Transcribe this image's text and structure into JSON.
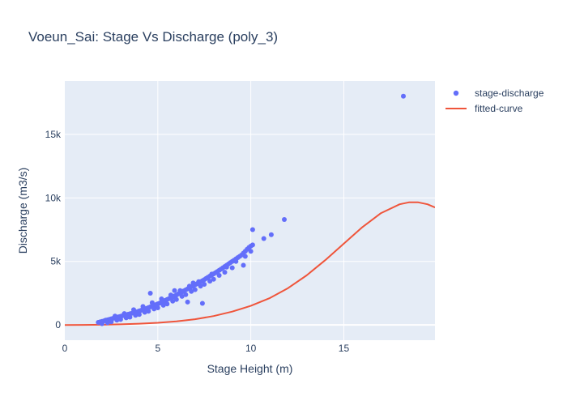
{
  "chart_data": {
    "type": "scatter",
    "title": "Voeun_Sai: Stage Vs Discharge (poly_3)",
    "xlabel": "Stage Height (m)",
    "ylabel": "Discharge (m3/s)",
    "xlim": [
      0,
      19.9
    ],
    "ylim": [
      -1200,
      19200
    ],
    "x_ticks": [
      {
        "value": 0,
        "label": "0"
      },
      {
        "value": 5,
        "label": "5"
      },
      {
        "value": 10,
        "label": "10"
      },
      {
        "value": 15,
        "label": "15"
      }
    ],
    "y_ticks": [
      {
        "value": 0,
        "label": "0"
      },
      {
        "value": 5000,
        "label": "5k"
      },
      {
        "value": 10000,
        "label": "10k"
      },
      {
        "value": 15000,
        "label": "15k"
      }
    ],
    "grid": true,
    "legend_position": "top-right",
    "colors": {
      "plot_background": "#e5ecf6",
      "grid": "#ffffff",
      "scatter": "#636efa",
      "line": "#ef553b",
      "text": "#2a3f5f"
    },
    "series": [
      {
        "name": "stage-discharge",
        "type": "scatter",
        "x": [
          1.8,
          1.9,
          2.0,
          2.1,
          2.2,
          2.3,
          2.4,
          2.5,
          2.6,
          2.7,
          2.8,
          2.9,
          3.0,
          3.1,
          3.2,
          3.3,
          3.4,
          3.5,
          3.6,
          3.7,
          3.8,
          3.9,
          4.0,
          4.1,
          4.2,
          4.3,
          4.4,
          4.5,
          4.6,
          4.7,
          4.8,
          4.9,
          5.0,
          5.1,
          5.2,
          5.3,
          5.4,
          5.5,
          5.6,
          5.7,
          5.8,
          5.9,
          6.0,
          6.1,
          6.2,
          6.3,
          6.4,
          6.5,
          6.6,
          6.7,
          6.8,
          6.9,
          7.0,
          7.1,
          7.2,
          7.3,
          7.4,
          7.5,
          7.6,
          7.7,
          7.8,
          7.9,
          8.0,
          8.1,
          8.2,
          8.3,
          8.4,
          8.5,
          8.6,
          8.7,
          8.8,
          8.9,
          9.0,
          9.1,
          9.2,
          9.3,
          9.4,
          9.5,
          9.6,
          9.7,
          9.8,
          9.9,
          10.0,
          10.1,
          2.0,
          2.3,
          2.5,
          2.8,
          3.0,
          3.3,
          3.5,
          3.8,
          4.0,
          4.3,
          4.5,
          4.8,
          5.0,
          5.3,
          5.5,
          5.8,
          6.0,
          6.3,
          6.5,
          6.8,
          7.0,
          7.3,
          7.5,
          7.8,
          8.0,
          8.3,
          8.6,
          9.0,
          2.2,
          2.7,
          3.2,
          3.7,
          4.2,
          4.7,
          5.2,
          5.7,
          6.2,
          6.7,
          7.2,
          7.7,
          8.2,
          8.7,
          9.2,
          9.7,
          10.0,
          10.1,
          10.7,
          11.1,
          11.8,
          18.2,
          4.6,
          5.9,
          6.9,
          7.9,
          6.6,
          7.4,
          9.6
        ],
        "y": [
          200,
          240,
          280,
          320,
          360,
          400,
          440,
          480,
          520,
          560,
          600,
          640,
          680,
          720,
          760,
          800,
          840,
          880,
          920,
          960,
          1000,
          1050,
          1100,
          1150,
          1200,
          1250,
          1300,
          1360,
          1420,
          1480,
          1540,
          1600,
          1660,
          1720,
          1790,
          1860,
          1930,
          2000,
          2070,
          2140,
          2210,
          2280,
          2360,
          2440,
          2520,
          2600,
          2680,
          2760,
          2840,
          2920,
          3000,
          3080,
          3160,
          3240,
          3320,
          3400,
          3480,
          3570,
          3660,
          3750,
          3840,
          3930,
          4020,
          4110,
          4200,
          4300,
          4400,
          4500,
          4600,
          4700,
          4800,
          4900,
          5000,
          5100,
          5200,
          5300,
          5400,
          5500,
          5650,
          5800,
          5950,
          6100,
          6200,
          6300,
          100,
          180,
          250,
          380,
          430,
          560,
          620,
          760,
          830,
          1000,
          1080,
          1260,
          1350,
          1550,
          1650,
          1880,
          2000,
          2250,
          2380,
          2640,
          2780,
          3050,
          3200,
          3450,
          3600,
          3900,
          4150,
          4500,
          380,
          700,
          900,
          1200,
          1450,
          1750,
          2050,
          2350,
          2700,
          3050,
          3400,
          3750,
          4150,
          4550,
          5000,
          5400,
          5800,
          7500,
          6800,
          7100,
          8300,
          18000,
          2500,
          2700,
          3300,
          4000,
          1800,
          1700,
          4700
        ]
      },
      {
        "name": "fitted-curve",
        "type": "line",
        "x": [
          0,
          1,
          2,
          3,
          4,
          5,
          6,
          7,
          8,
          9,
          10,
          11,
          12,
          13,
          14,
          15,
          16,
          17,
          18,
          18.5,
          19,
          19.5,
          19.9
        ],
        "y": [
          0,
          5,
          20,
          50,
          100,
          170,
          280,
          450,
          700,
          1050,
          1500,
          2100,
          2900,
          3900,
          5100,
          6400,
          7700,
          8800,
          9500,
          9650,
          9650,
          9500,
          9250
        ]
      }
    ]
  }
}
